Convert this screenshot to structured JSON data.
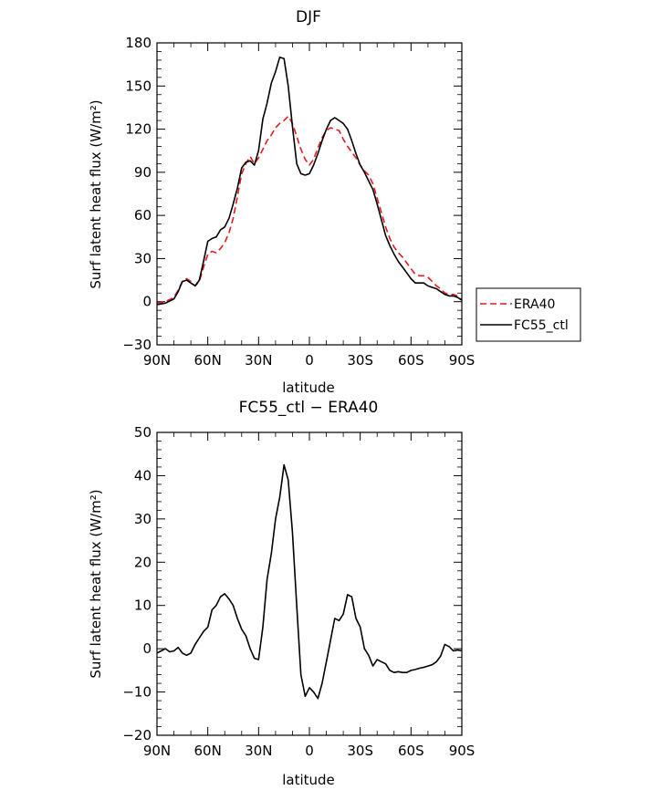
{
  "chart_data": [
    {
      "type": "line",
      "title": "DJF",
      "xlabel": "latitude",
      "ylabel": "Surf latent heat flux (W/m²)",
      "ylim": [
        -30,
        180
      ],
      "yticks": [
        -30,
        0,
        30,
        60,
        90,
        120,
        150,
        180
      ],
      "xlim": [
        90,
        -90
      ],
      "xticks": [
        90,
        60,
        30,
        0,
        -30,
        -60,
        -90
      ],
      "xtick_labels": [
        "90N",
        "60N",
        "30N",
        "0",
        "30S",
        "60S",
        "90S"
      ],
      "legend": {
        "position": "right"
      },
      "series": [
        {
          "name": "ERA40",
          "color": "#e41a1c",
          "style": "dashed",
          "x": [
            90,
            85,
            80,
            77.5,
            75,
            72.5,
            70,
            67.5,
            65,
            62.5,
            60,
            57.5,
            55,
            52.5,
            50,
            47.5,
            45,
            42.5,
            40,
            37.5,
            35,
            32.5,
            30,
            27.5,
            25,
            22.5,
            20,
            17.5,
            15,
            12.5,
            10,
            7.5,
            5,
            2.5,
            0,
            -2.5,
            -5,
            -7.5,
            -10,
            -12.5,
            -15,
            -17.5,
            -20,
            -22.5,
            -25,
            -27.5,
            -30,
            -32.5,
            -35,
            -37.5,
            -40,
            -42.5,
            -45,
            -47.5,
            -50,
            -52.5,
            -55,
            -57.5,
            -60,
            -62.5,
            -65,
            -67.5,
            -70,
            -72.5,
            -75,
            -77.5,
            -80,
            -82.5,
            -85,
            -87.5,
            -90
          ],
          "values": [
            -1,
            0,
            3,
            8,
            14,
            16,
            14,
            11,
            14,
            24,
            33,
            35,
            34,
            37,
            41,
            48,
            58,
            73,
            89,
            96,
            101,
            96,
            100,
            106,
            112,
            116,
            121,
            124,
            126,
            129,
            124,
            115,
            106,
            99,
            95,
            99,
            107,
            114,
            119,
            121,
            120,
            119,
            113,
            108,
            104,
            100,
            95,
            91,
            88,
            82,
            72,
            62,
            52,
            44,
            38,
            34,
            31,
            27,
            23,
            19,
            18,
            18,
            17,
            14,
            11,
            9,
            6,
            5,
            5,
            4,
            1
          ]
        },
        {
          "name": "FC55_ctl",
          "color": "#000000",
          "style": "solid",
          "x": [
            90,
            85,
            80,
            77.5,
            75,
            72.5,
            70,
            67.5,
            65,
            62.5,
            60,
            57.5,
            55,
            52.5,
            50,
            47.5,
            45,
            42.5,
            40,
            37.5,
            35,
            32.5,
            30,
            27.5,
            25,
            22.5,
            20,
            17.5,
            15,
            12.5,
            10,
            7.5,
            5,
            2.5,
            0,
            -2.5,
            -5,
            -7.5,
            -10,
            -12.5,
            -15,
            -17.5,
            -20,
            -22.5,
            -25,
            -27.5,
            -30,
            -32.5,
            -35,
            -37.5,
            -40,
            -42.5,
            -45,
            -47.5,
            -50,
            -52.5,
            -55,
            -57.5,
            -60,
            -62.5,
            -65,
            -67.5,
            -70,
            -72.5,
            -75,
            -77.5,
            -80,
            -82.5,
            -85,
            -87.5,
            -90
          ],
          "values": [
            -2,
            -1,
            2,
            7,
            14,
            15,
            13,
            11,
            15,
            28,
            42,
            44,
            45,
            50,
            52,
            58,
            68,
            79,
            93,
            97,
            98,
            95,
            105,
            127,
            138,
            152,
            160,
            170,
            169,
            150,
            122,
            96,
            89,
            88,
            89,
            95,
            103,
            112,
            120,
            126,
            128,
            126,
            124,
            120,
            112,
            103,
            95,
            90,
            84,
            78,
            68,
            57,
            46,
            39,
            33,
            28,
            24,
            20,
            16,
            13,
            13,
            13,
            11,
            10,
            9,
            7,
            5,
            4,
            4,
            3,
            1
          ]
        }
      ]
    },
    {
      "type": "line",
      "title": "FC55_ctl − ERA40",
      "xlabel": "latitude",
      "ylabel": "Surf latent heat flux (W/m²)",
      "ylim": [
        -20,
        50
      ],
      "yticks": [
        -20,
        -10,
        0,
        10,
        20,
        30,
        40,
        50
      ],
      "xlim": [
        90,
        -90
      ],
      "xticks": [
        90,
        60,
        30,
        0,
        -30,
        -60,
        -90
      ],
      "xtick_labels": [
        "90N",
        "60N",
        "30N",
        "0",
        "30S",
        "60S",
        "90S"
      ],
      "series": [
        {
          "color": "#000000",
          "style": "solid",
          "x": [
            90,
            87.5,
            85,
            82.5,
            80,
            77.5,
            75,
            72.5,
            70,
            67.5,
            65,
            62.5,
            60,
            57.5,
            55,
            52.5,
            50,
            47.5,
            45,
            42.5,
            40,
            37.5,
            35,
            32.5,
            30,
            27.5,
            25,
            22.5,
            20,
            17.5,
            15,
            12.5,
            10,
            7.5,
            5,
            2.5,
            0,
            -2.5,
            -5,
            -7.5,
            -10,
            -12.5,
            -15,
            -17.5,
            -20,
            -22.5,
            -25,
            -27.5,
            -30,
            -32.5,
            -35,
            -37.5,
            -40,
            -42.5,
            -45,
            -47.5,
            -50,
            -52.5,
            -55,
            -57.5,
            -60,
            -62.5,
            -65,
            -67.5,
            -70,
            -72.5,
            -75,
            -77.5,
            -80,
            -82.5,
            -85,
            -87.5,
            -90
          ],
          "values": [
            -1,
            -0.5,
            0,
            -0.7,
            -0.5,
            0.3,
            -1,
            -1.5,
            -1,
            1,
            2.5,
            4,
            5,
            9,
            10,
            12,
            12.7,
            11.5,
            10,
            7,
            4.5,
            3,
            0,
            -2.2,
            -2.5,
            5,
            16,
            22,
            30,
            35,
            42.5,
            39,
            27,
            10,
            -6,
            -11,
            -9,
            -10,
            -11.5,
            -8,
            -3,
            2,
            7,
            6.5,
            8,
            12.5,
            12,
            7,
            5,
            0,
            -1.5,
            -4,
            -2.5,
            -3,
            -3.5,
            -5,
            -5.5,
            -5.3,
            -5.5,
            -5.5,
            -5,
            -4.8,
            -4.5,
            -4.3,
            -4,
            -3.7,
            -3,
            -1.7,
            1,
            0.5,
            -0.5,
            -0.3,
            -0.5
          ]
        }
      ]
    }
  ]
}
